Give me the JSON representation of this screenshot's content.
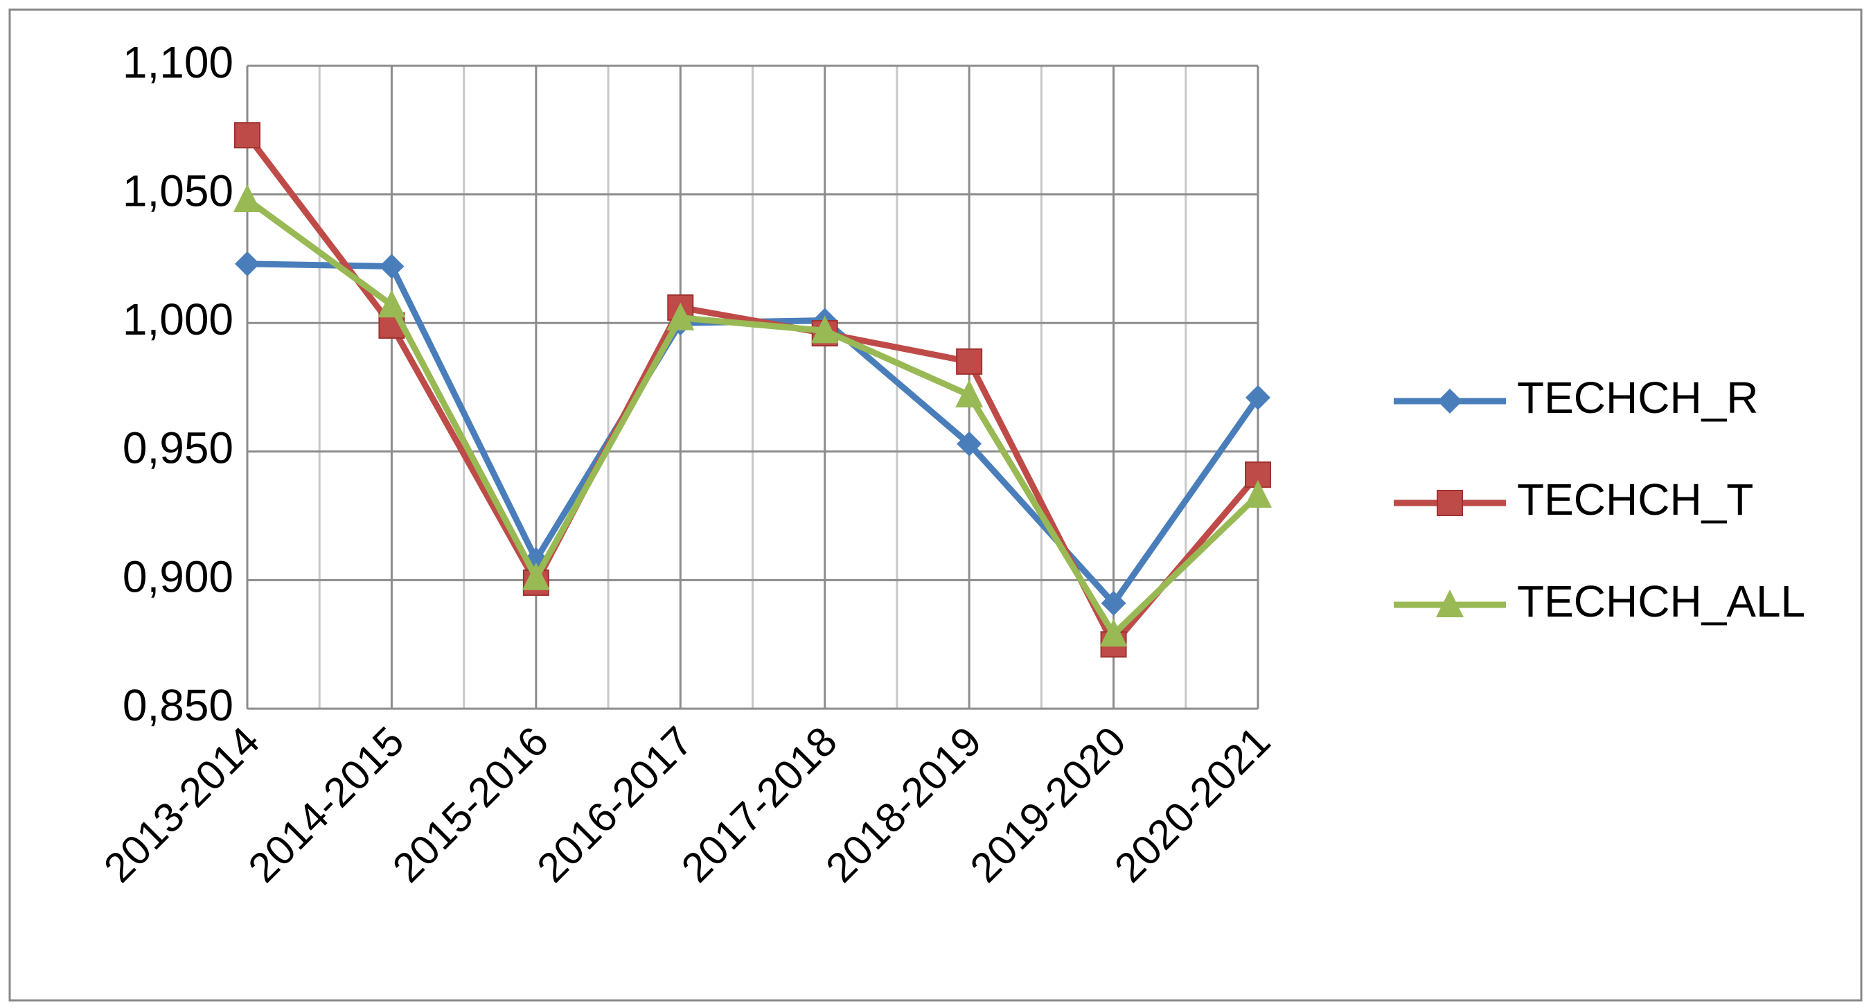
{
  "chart_data": {
    "type": "line",
    "categories": [
      "2013-2014",
      "2014-2015",
      "2015-2016",
      "2016-2017",
      "2017-2018",
      "2018-2019",
      "2019-2020",
      "2020-2021"
    ],
    "series": [
      {
        "name": "TECHCH_R",
        "color": "#4a7ebb",
        "marker": "diamond",
        "values": [
          1.023,
          1.022,
          0.908,
          1.0,
          1.001,
          0.953,
          0.891,
          0.971
        ]
      },
      {
        "name": "TECHCH_T",
        "color": "#be4b48",
        "marker": "square",
        "values": [
          1.073,
          0.999,
          0.899,
          1.006,
          0.996,
          0.985,
          0.875,
          0.941
        ]
      },
      {
        "name": "TECHCH_ALL",
        "color": "#98b954",
        "marker": "triangle",
        "values": [
          1.048,
          1.007,
          0.901,
          1.002,
          0.997,
          0.972,
          0.879,
          0.933
        ]
      }
    ],
    "ylim": [
      0.85,
      1.1
    ],
    "yticks": [
      {
        "value": 0.85,
        "label": "0,850"
      },
      {
        "value": 0.9,
        "label": "0,900"
      },
      {
        "value": 0.95,
        "label": "0,950"
      },
      {
        "value": 1.0,
        "label": "1,000"
      },
      {
        "value": 1.05,
        "label": "1,050"
      },
      {
        "value": 1.1,
        "label": "1,100"
      }
    ],
    "grid": true,
    "legend": "right"
  }
}
